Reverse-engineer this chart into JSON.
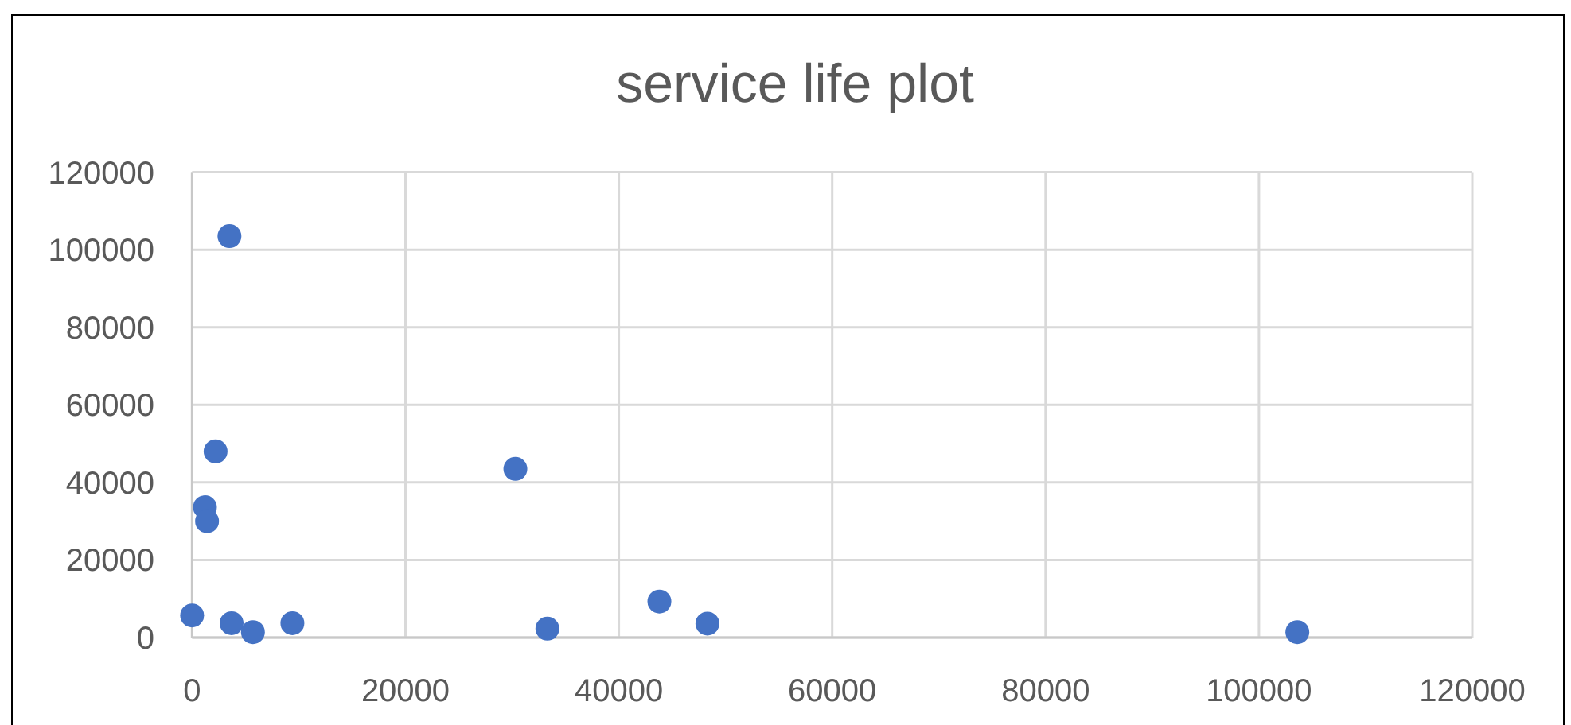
{
  "chart_data": {
    "type": "scatter",
    "title": "service life plot",
    "x": [
      3500,
      2200,
      1200,
      1400,
      0,
      3700,
      5700,
      9400,
      30300,
      33300,
      43800,
      48300,
      103600
    ],
    "values": [
      103500,
      48000,
      33600,
      30000,
      5700,
      3700,
      1400,
      3700,
      43500,
      2300,
      9300,
      3600,
      1400
    ],
    "color": "#4472c4",
    "marker": "circle",
    "xlim": [
      0,
      120000
    ],
    "xticks": [
      0,
      20000,
      40000,
      60000,
      80000,
      100000,
      120000
    ],
    "ylim": [
      0,
      120000
    ],
    "yticks": [
      0,
      20000,
      40000,
      60000,
      80000,
      100000,
      120000
    ],
    "grid": true
  }
}
